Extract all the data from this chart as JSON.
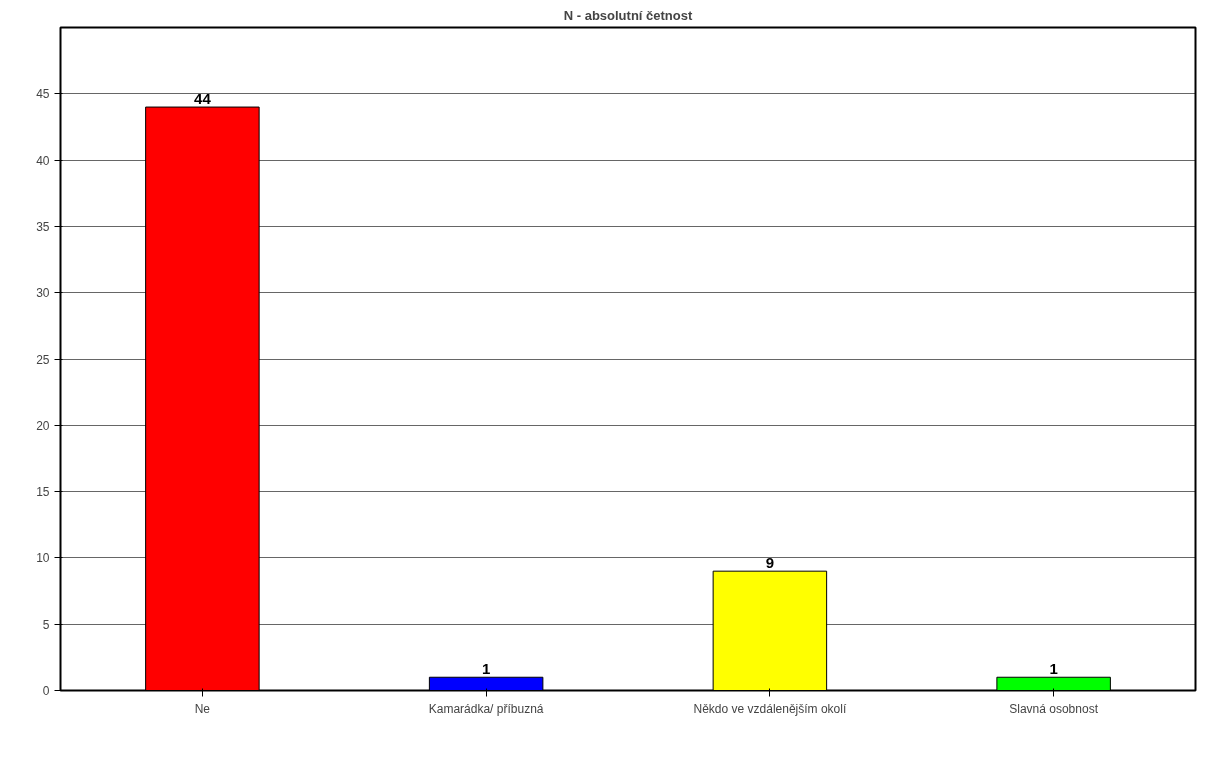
{
  "chart_data": {
    "type": "bar",
    "title": "N - absolutní četnost",
    "categories": [
      "Ne",
      "Kamarádka/ příbuzná",
      "Někdo ve vzdálenějším okolí",
      "Slavná osobnost"
    ],
    "values": [
      44,
      1,
      9,
      1
    ],
    "colors": [
      "#ff0000",
      "#0000ff",
      "#ffff00",
      "#00ff00"
    ],
    "ylim": [
      0,
      50
    ],
    "yticks": [
      0,
      5,
      10,
      15,
      20,
      25,
      30,
      35,
      40,
      45
    ],
    "grid": "y",
    "data_labels": true
  }
}
